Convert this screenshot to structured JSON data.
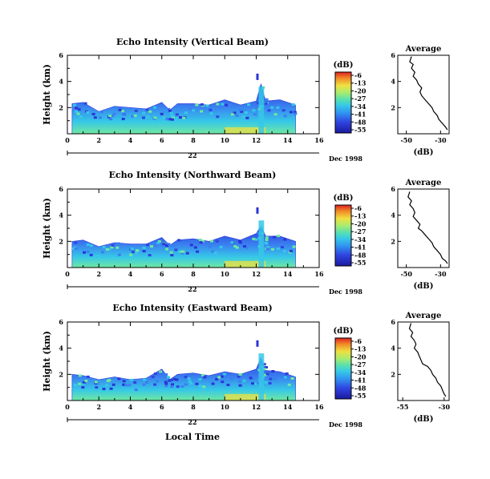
{
  "colors": {
    "axis": "#000000",
    "background": "#ffffff",
    "echo_low": "#2a2fd0",
    "echo_mid": "#36c8e8",
    "echo_high": "#f0e040",
    "echo_peak": "#e02020"
  },
  "common": {
    "xlabel": "Local Time",
    "date_day": "22",
    "date_label": "Dec 1998",
    "ylabel": "Height (km)",
    "colorbar_unit": "(dB)",
    "colorbar_ticks": [
      "-6",
      "-13",
      "-20",
      "-27",
      "-34",
      "-41",
      "-48",
      "-55"
    ],
    "x_ticks": [
      "0",
      "2",
      "4",
      "6",
      "8",
      "10",
      "12",
      "14",
      "16"
    ],
    "y_ticks": [
      "6",
      "4",
      "2"
    ],
    "profile_title": "Average",
    "profile_xlabel": "(dB)",
    "profile_y_ticks": [
      "6",
      "4",
      "2"
    ]
  },
  "chart_data": [
    {
      "type": "heatmap",
      "title": "Echo Intensity (Vertical Beam)",
      "xlabel": "Local Time",
      "ylabel": "Height (km)",
      "xlim": [
        0,
        16
      ],
      "ylim": [
        0,
        6
      ],
      "colorbar": {
        "label": "(dB)",
        "range": [
          -55,
          -6
        ]
      },
      "echo_extent": [
        {
          "t": 0.3,
          "top": 2.3
        },
        {
          "t": 1.0,
          "top": 2.4
        },
        {
          "t": 2.0,
          "top": 1.7
        },
        {
          "t": 3.0,
          "top": 2.1
        },
        {
          "t": 4.0,
          "top": 2.0
        },
        {
          "t": 5.0,
          "top": 1.9
        },
        {
          "t": 6.0,
          "top": 2.4
        },
        {
          "t": 6.5,
          "top": 1.8
        },
        {
          "t": 7.0,
          "top": 2.3
        },
        {
          "t": 8.0,
          "top": 2.3
        },
        {
          "t": 9.0,
          "top": 2.2
        },
        {
          "t": 10.0,
          "top": 2.6
        },
        {
          "t": 11.0,
          "top": 2.2
        },
        {
          "t": 12.0,
          "top": 2.5
        },
        {
          "t": 12.3,
          "top": 3.8
        },
        {
          "t": 12.6,
          "top": 2.5
        },
        {
          "t": 13.5,
          "top": 2.6
        },
        {
          "t": 14.5,
          "top": 2.2
        }
      ],
      "profile": {
        "title": "Average",
        "xlabel": "(dB)",
        "xlim": [
          -55,
          -25
        ],
        "x_ticks": [
          "-50",
          "-30"
        ],
        "points": [
          [
            -47,
            5.9
          ],
          [
            -48,
            5.5
          ],
          [
            -46,
            5.3
          ],
          [
            -47,
            5.0
          ],
          [
            -45,
            4.7
          ],
          [
            -46,
            4.4
          ],
          [
            -44,
            4.1
          ],
          [
            -43,
            3.8
          ],
          [
            -41,
            3.5
          ],
          [
            -42,
            3.2
          ],
          [
            -41,
            2.9
          ],
          [
            -39,
            2.6
          ],
          [
            -37,
            2.3
          ],
          [
            -35,
            2.0
          ],
          [
            -34,
            1.7
          ],
          [
            -32,
            1.4
          ],
          [
            -31,
            1.1
          ],
          [
            -29,
            0.8
          ],
          [
            -27,
            0.5
          ],
          [
            -26,
            0.3
          ]
        ]
      }
    },
    {
      "type": "heatmap",
      "title": "Echo Intensity (Northward Beam)",
      "xlabel": "Local Time",
      "ylabel": "Height (km)",
      "xlim": [
        0,
        16
      ],
      "ylim": [
        0,
        6
      ],
      "colorbar": {
        "label": "(dB)",
        "range": [
          -55,
          -6
        ]
      },
      "echo_extent": [
        {
          "t": 0.3,
          "top": 2.0
        },
        {
          "t": 1.0,
          "top": 2.1
        },
        {
          "t": 2.0,
          "top": 1.6
        },
        {
          "t": 3.0,
          "top": 1.9
        },
        {
          "t": 4.0,
          "top": 1.8
        },
        {
          "t": 5.0,
          "top": 1.8
        },
        {
          "t": 6.0,
          "top": 2.3
        },
        {
          "t": 6.5,
          "top": 1.7
        },
        {
          "t": 7.0,
          "top": 2.1
        },
        {
          "t": 8.0,
          "top": 2.2
        },
        {
          "t": 9.0,
          "top": 2.0
        },
        {
          "t": 10.0,
          "top": 2.4
        },
        {
          "t": 11.0,
          "top": 2.1
        },
        {
          "t": 12.0,
          "top": 2.6
        },
        {
          "t": 12.3,
          "top": 3.2
        },
        {
          "t": 12.6,
          "top": 2.4
        },
        {
          "t": 13.5,
          "top": 2.4
        },
        {
          "t": 14.5,
          "top": 2.0
        }
      ],
      "profile": {
        "title": "Average",
        "xlabel": "(dB)",
        "xlim": [
          -55,
          -25
        ],
        "x_ticks": [
          "-50",
          "-30"
        ],
        "points": [
          [
            -48,
            5.8
          ],
          [
            -49,
            5.4
          ],
          [
            -47,
            5.1
          ],
          [
            -48,
            4.8
          ],
          [
            -46,
            4.5
          ],
          [
            -45,
            4.2
          ],
          [
            -46,
            3.9
          ],
          [
            -44,
            3.6
          ],
          [
            -42,
            3.3
          ],
          [
            -43,
            3.0
          ],
          [
            -41,
            2.8
          ],
          [
            -39,
            2.5
          ],
          [
            -37,
            2.2
          ],
          [
            -35,
            1.9
          ],
          [
            -34,
            1.6
          ],
          [
            -32,
            1.3
          ],
          [
            -30,
            1.0
          ],
          [
            -29,
            0.7
          ],
          [
            -27,
            0.5
          ],
          [
            -26,
            0.3
          ]
        ]
      }
    },
    {
      "type": "heatmap",
      "title": "Echo Intensity (Eastward Beam)",
      "xlabel": "Local Time",
      "ylabel": "Height (km)",
      "xlim": [
        0,
        16
      ],
      "ylim": [
        0,
        6
      ],
      "colorbar": {
        "label": "(dB)",
        "range": [
          -55,
          -6
        ]
      },
      "echo_extent": [
        {
          "t": 0.3,
          "top": 2.0
        },
        {
          "t": 1.0,
          "top": 1.9
        },
        {
          "t": 2.0,
          "top": 1.6
        },
        {
          "t": 3.0,
          "top": 1.8
        },
        {
          "t": 4.0,
          "top": 1.6
        },
        {
          "t": 5.0,
          "top": 1.7
        },
        {
          "t": 6.0,
          "top": 2.4
        },
        {
          "t": 6.5,
          "top": 1.6
        },
        {
          "t": 7.0,
          "top": 2.0
        },
        {
          "t": 8.0,
          "top": 2.1
        },
        {
          "t": 9.0,
          "top": 1.9
        },
        {
          "t": 10.0,
          "top": 2.2
        },
        {
          "t": 11.0,
          "top": 2.0
        },
        {
          "t": 12.0,
          "top": 2.4
        },
        {
          "t": 12.3,
          "top": 3.3
        },
        {
          "t": 12.6,
          "top": 2.3
        },
        {
          "t": 13.5,
          "top": 2.2
        },
        {
          "t": 14.5,
          "top": 1.8
        }
      ],
      "profile": {
        "title": "Average",
        "xlabel": "(dB)",
        "xlim": [
          -58,
          -27
        ],
        "x_ticks": [
          "-55",
          "-30"
        ],
        "points": [
          [
            -50,
            5.9
          ],
          [
            -51,
            5.5
          ],
          [
            -49,
            5.2
          ],
          [
            -50,
            4.9
          ],
          [
            -48,
            4.6
          ],
          [
            -47,
            4.3
          ],
          [
            -48,
            4.0
          ],
          [
            -46,
            3.7
          ],
          [
            -45,
            3.4
          ],
          [
            -44,
            3.1
          ],
          [
            -43,
            2.8
          ],
          [
            -40,
            2.6
          ],
          [
            -38,
            2.3
          ],
          [
            -37,
            2.0
          ],
          [
            -35,
            1.7
          ],
          [
            -34,
            1.4
          ],
          [
            -32,
            1.1
          ],
          [
            -31,
            0.8
          ],
          [
            -30,
            0.5
          ],
          [
            -29,
            0.3
          ]
        ]
      }
    }
  ]
}
